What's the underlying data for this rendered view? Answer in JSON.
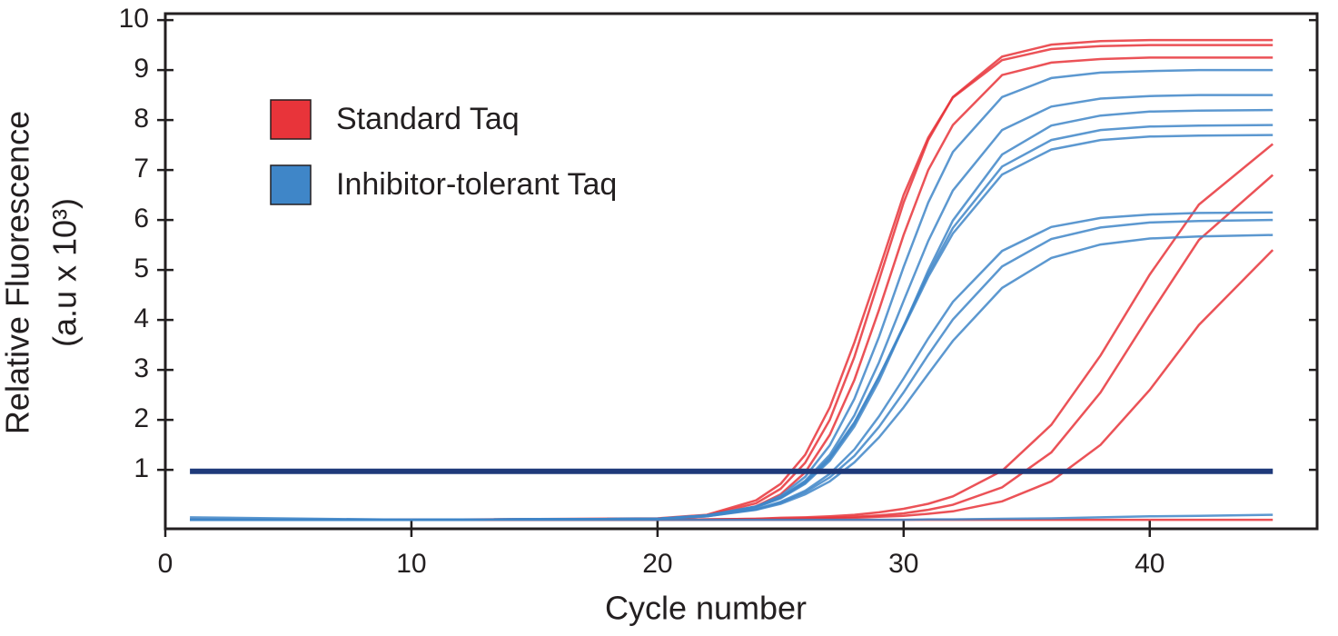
{
  "chart_data": {
    "type": "line",
    "x_label": "Cycle number",
    "y_label": [
      "Relative Fluorescence",
      "(a.u x 10³)"
    ],
    "x": [
      1,
      10,
      20,
      22,
      24,
      25,
      26,
      27,
      28,
      29,
      30,
      31,
      32,
      34,
      36,
      38,
      40,
      42,
      45
    ],
    "xlim": [
      0,
      46.8
    ],
    "xticks": [
      0,
      10,
      20,
      30,
      40
    ],
    "ylim": [
      -0.18,
      10.13
    ],
    "yticks": [
      1,
      2,
      3,
      4,
      5,
      6,
      7,
      8,
      9,
      10
    ],
    "threshold": 0.97,
    "threshold_color": "#1f3a7a",
    "series": [
      {
        "name": "Standard Taq",
        "color": "#e8343a",
        "values": [
          [
            0,
            0,
            0.02,
            0.09,
            0.33,
            0.62,
            1.14,
            2.0,
            3.26,
            4.8,
            6.35,
            7.6,
            8.46,
            9.27,
            9.51,
            9.58,
            9.6,
            9.6,
            9.6
          ],
          [
            0,
            0,
            0.02,
            0.07,
            0.27,
            0.51,
            0.95,
            1.7,
            2.8,
            4.2,
            5.7,
            7.0,
            7.9,
            8.9,
            9.15,
            9.22,
            9.25,
            9.25,
            9.25
          ],
          [
            0,
            0,
            0.03,
            0.1,
            0.39,
            0.72,
            1.3,
            2.25,
            3.55,
            5.0,
            6.5,
            7.65,
            8.45,
            9.2,
            9.42,
            9.48,
            9.5,
            9.5,
            9.5
          ],
          [
            0,
            0,
            0,
            0.01,
            0.02,
            0.04,
            0.05,
            0.07,
            0.1,
            0.15,
            0.22,
            0.32,
            0.47,
            0.98,
            1.9,
            3.29,
            4.91,
            6.31,
            7.52
          ],
          [
            0,
            0,
            0,
            0.01,
            0.02,
            0.02,
            0.03,
            0.04,
            0.06,
            0.09,
            0.13,
            0.2,
            0.3,
            0.65,
            1.35,
            2.55,
            4.1,
            5.6,
            6.9
          ],
          [
            0,
            0,
            0,
            0,
            0.01,
            0.01,
            0.02,
            0.03,
            0.04,
            0.06,
            0.08,
            0.12,
            0.17,
            0.37,
            0.77,
            1.5,
            2.6,
            3.9,
            5.4
          ],
          [
            0,
            0,
            0,
            0,
            0,
            0,
            0,
            0,
            0,
            0,
            0,
            0,
            0,
            0,
            0,
            0,
            0,
            0,
            0
          ]
        ]
      },
      {
        "name": "Inhibitor-tolerant Taq",
        "color": "#3f86c8",
        "values": [
          [
            0,
            0,
            0.02,
            0.08,
            0.26,
            0.48,
            0.86,
            1.49,
            2.42,
            3.66,
            5.06,
            6.35,
            7.36,
            8.46,
            8.84,
            8.95,
            8.98,
            9.0,
            9.0
          ],
          [
            0,
            0,
            0.02,
            0.08,
            0.26,
            0.45,
            0.78,
            1.3,
            2.09,
            3.15,
            4.38,
            5.58,
            6.59,
            7.8,
            8.27,
            8.43,
            8.48,
            8.5,
            8.5
          ],
          [
            0,
            0,
            0.02,
            0.09,
            0.25,
            0.43,
            0.72,
            1.18,
            1.87,
            2.78,
            3.87,
            4.99,
            5.99,
            7.31,
            7.89,
            8.09,
            8.17,
            8.19,
            8.2
          ],
          [
            0,
            0,
            0.02,
            0.09,
            0.26,
            0.44,
            0.74,
            1.22,
            1.93,
            2.86,
            3.88,
            4.92,
            5.84,
            7.07,
            7.6,
            7.8,
            7.87,
            7.89,
            7.9
          ],
          [
            0,
            0,
            0.02,
            0.09,
            0.27,
            0.45,
            0.76,
            1.25,
            1.95,
            2.87,
            3.85,
            4.86,
            5.73,
            6.91,
            7.41,
            7.6,
            7.67,
            7.69,
            7.7
          ],
          [
            0,
            0,
            0.02,
            0.08,
            0.21,
            0.36,
            0.58,
            0.92,
            1.41,
            2.07,
            2.83,
            3.63,
            4.36,
            5.38,
            5.86,
            6.04,
            6.11,
            6.14,
            6.15
          ],
          [
            0,
            0,
            0.02,
            0.07,
            0.21,
            0.34,
            0.55,
            0.85,
            1.28,
            1.86,
            2.55,
            3.3,
            4.01,
            5.07,
            5.62,
            5.85,
            5.95,
            5.98,
            6.0
          ],
          [
            0,
            0,
            0.02,
            0.07,
            0.2,
            0.32,
            0.51,
            0.77,
            1.15,
            1.65,
            2.25,
            2.92,
            3.58,
            4.64,
            5.24,
            5.51,
            5.63,
            5.67,
            5.7
          ],
          [
            0.05,
            0,
            0,
            0,
            0,
            0,
            0,
            0,
            0,
            0,
            0,
            0.01,
            0.01,
            0.02,
            0.03,
            0.05,
            0.07,
            0.08,
            0.1
          ]
        ]
      }
    ]
  }
}
